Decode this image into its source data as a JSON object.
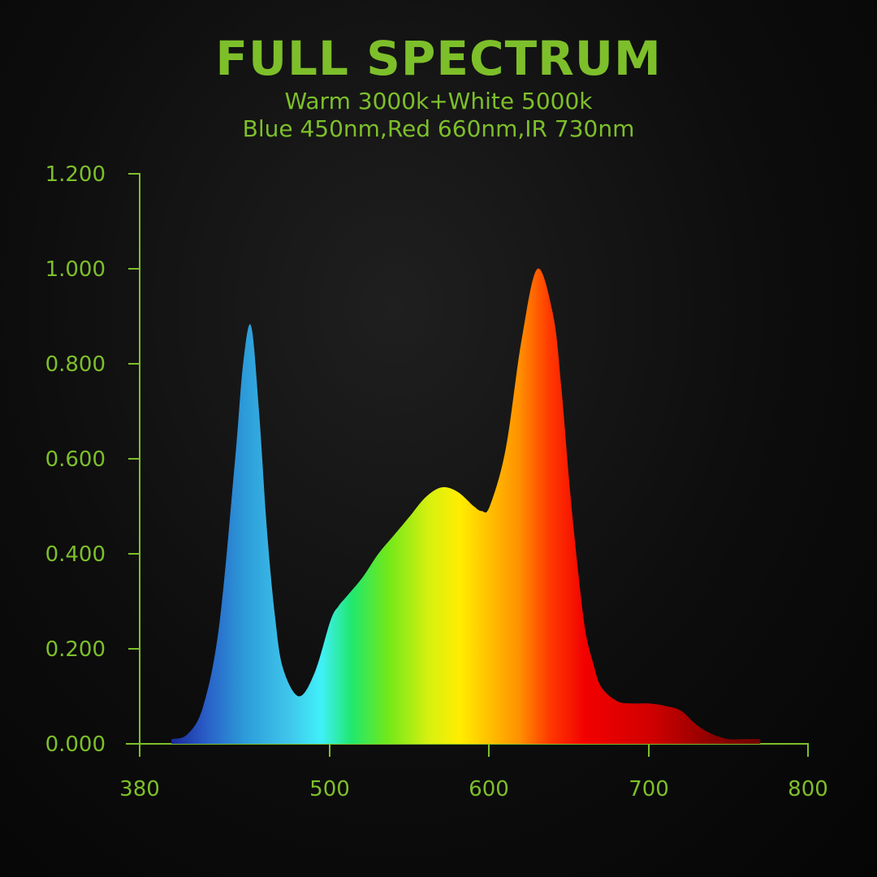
{
  "chart_data": {
    "type": "area",
    "title": "FULL SPECTRUM",
    "subtitle_lines": [
      "Warm 3000k+White 5000k",
      "Blue 450nm,Red 660nm,IR 730nm"
    ],
    "xlabel": "",
    "ylabel": "",
    "xlim": [
      380,
      800
    ],
    "ylim": [
      0,
      1.2
    ],
    "x_tick_labels": [
      "380",
      "500",
      "600",
      "700",
      "800"
    ],
    "y_tick_labels": [
      "0.000",
      "0.200",
      "0.400",
      "0.600",
      "0.800",
      "1.000",
      "1.200"
    ],
    "grid": false,
    "legend": "none",
    "fill": "visible-spectrum gradient",
    "series": [
      {
        "x": [
          400,
          410,
          420,
          430,
          440,
          445,
          450,
          455,
          460,
          465,
          470,
          480,
          490,
          500,
          505,
          510,
          520,
          530,
          540,
          550,
          560,
          570,
          580,
          590,
          595,
          600,
          610,
          620,
          630,
          640,
          645,
          650,
          655,
          660,
          665,
          670,
          680,
          690,
          700,
          710,
          720,
          730,
          740,
          750,
          760,
          765,
          770
        ],
        "values": [
          0.01,
          0.02,
          0.08,
          0.25,
          0.6,
          0.8,
          0.88,
          0.7,
          0.45,
          0.27,
          0.16,
          0.1,
          0.15,
          0.26,
          0.29,
          0.31,
          0.35,
          0.4,
          0.44,
          0.48,
          0.52,
          0.54,
          0.53,
          0.5,
          0.49,
          0.5,
          0.62,
          0.85,
          1.0,
          0.9,
          0.75,
          0.55,
          0.38,
          0.24,
          0.17,
          0.12,
          0.09,
          0.085,
          0.085,
          0.08,
          0.07,
          0.04,
          0.02,
          0.01,
          0.01,
          0.01,
          0.01
        ]
      }
    ]
  },
  "colors": {
    "label_green": "#7dbf2a",
    "background": "#0d0d0d"
  }
}
